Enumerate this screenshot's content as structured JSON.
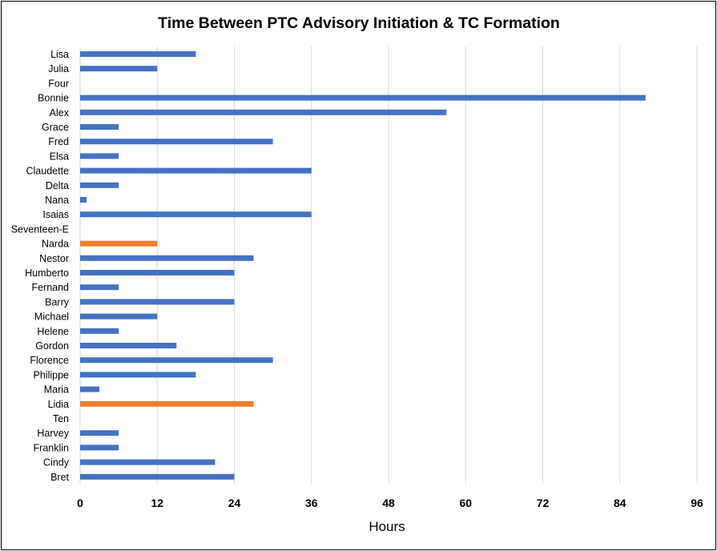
{
  "chart_data": {
    "type": "bar",
    "orientation": "horizontal",
    "title": "Time Between PTC Advisory Initiation & TC Formation",
    "xlabel": "Hours",
    "ylabel": "",
    "xlim": [
      0,
      96
    ],
    "xticks": [
      0,
      12,
      24,
      36,
      48,
      60,
      72,
      84,
      96
    ],
    "grid": "vertical",
    "legend": "none",
    "colors": {
      "default": "#4472C4",
      "highlight": "#ED7D31",
      "grid": "#D9D9D9"
    },
    "categories": [
      "Lisa",
      "Julia",
      "Four",
      "Bonnie",
      "Alex",
      "Grace",
      "Fred",
      "Elsa",
      "Claudette",
      "Delta",
      "Nana",
      "Isaias",
      "Seventeen-E",
      "Narda",
      "Nestor",
      "Humberto",
      "Fernand",
      "Barry",
      "Michael",
      "Helene",
      "Gordon",
      "Florence",
      "Philippe",
      "Maria",
      "Lidia",
      "Ten",
      "Harvey",
      "Franklin",
      "Cindy",
      "Bret"
    ],
    "values": [
      18,
      12,
      0,
      88,
      57,
      6,
      30,
      6,
      36,
      6,
      1,
      36,
      0,
      12,
      27,
      24,
      6,
      24,
      12,
      6,
      15,
      30,
      18,
      3,
      27,
      0,
      6,
      6,
      21,
      24
    ],
    "highlighted": [
      "Narda",
      "Lidia"
    ]
  }
}
